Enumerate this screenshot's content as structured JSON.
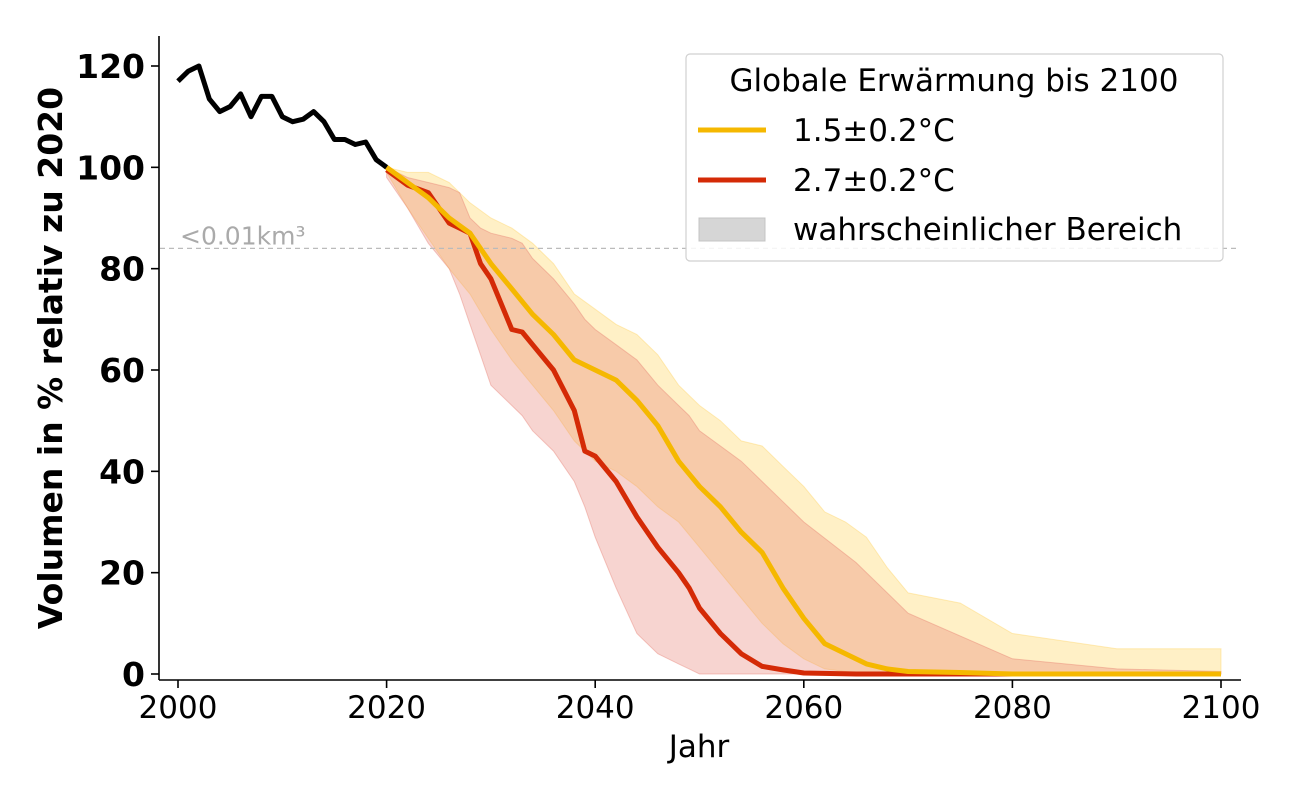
{
  "chart_data": {
    "type": "line",
    "xlabel": "Jahr",
    "ylabel": "Volumen in % relativ zu 2020",
    "xlim": [
      2000,
      2100
    ],
    "ylim": [
      0,
      125
    ],
    "x_ticks": [
      2000,
      2020,
      2040,
      2060,
      2080,
      2100
    ],
    "y_ticks": [
      0,
      20,
      40,
      60,
      80,
      100,
      120
    ],
    "grid": false,
    "legend": {
      "placement": "top-right",
      "title": "Globale Erwärmung bis 2100",
      "entries": [
        "1.5±0.2°C",
        "2.7±0.2°C",
        "wahrscheinlicher Bereich"
      ]
    },
    "reference_line": {
      "y": 84,
      "label": "<0.01km³",
      "color": "#bbbbbb"
    },
    "historical": {
      "color": "#000000",
      "x": [
        2000,
        2001,
        2002,
        2003,
        2004,
        2005,
        2006,
        2007,
        2008,
        2009,
        2010,
        2011,
        2012,
        2013,
        2014,
        2015,
        2016,
        2017,
        2018,
        2019,
        2020
      ],
      "y": [
        117,
        119,
        120,
        113.5,
        111,
        112,
        114.5,
        110,
        114,
        114,
        110,
        109,
        109.5,
        111,
        109,
        105.5,
        105.5,
        104.5,
        105,
        101.5,
        100
      ]
    },
    "series": [
      {
        "name": "1.5±0.2°C",
        "color": "#f5b800",
        "band_color": "#ffe9a8",
        "x": [
          2020,
          2022,
          2024,
          2026,
          2028,
          2030,
          2032,
          2034,
          2036,
          2038,
          2040,
          2042,
          2044,
          2046,
          2048,
          2050,
          2052,
          2054,
          2056,
          2058,
          2060,
          2062,
          2064,
          2066,
          2068,
          2070,
          2075,
          2080,
          2090,
          2100
        ],
        "y": [
          100,
          97,
          94,
          90,
          87,
          81,
          76,
          71,
          67,
          62,
          60,
          58,
          54,
          49,
          42,
          37,
          33,
          28,
          24,
          17,
          11,
          6,
          4,
          2,
          1,
          0.5,
          0.3,
          0,
          0,
          0
        ],
        "lower": [
          99,
          92,
          86,
          80,
          75,
          68,
          62,
          57,
          52,
          46,
          42,
          40,
          37,
          33,
          30,
          25,
          20,
          15,
          10,
          6,
          3,
          1,
          0.5,
          0,
          0,
          0,
          0,
          0,
          0,
          0
        ],
        "upper": [
          100,
          99,
          99,
          97,
          93,
          90,
          88,
          85,
          81,
          75,
          72,
          69,
          67,
          63,
          57,
          53,
          50,
          46,
          45,
          41,
          37,
          32,
          30,
          27,
          21,
          16,
          14,
          8,
          5,
          5
        ]
      },
      {
        "name": "2.7±0.2°C",
        "color": "#d42a06",
        "band_color": "#f3c8c6",
        "x": [
          2020,
          2022,
          2024,
          2026,
          2027,
          2028,
          2029,
          2030,
          2032,
          2033,
          2034,
          2036,
          2038,
          2039,
          2040,
          2042,
          2044,
          2046,
          2048,
          2049,
          2050,
          2052,
          2054,
          2056,
          2058,
          2060,
          2065,
          2070,
          2080,
          2090,
          2100
        ],
        "y": [
          99.5,
          96.5,
          95,
          89,
          88,
          87,
          81,
          78,
          68,
          67.5,
          65,
          60,
          52,
          44,
          43,
          38,
          31,
          25,
          20,
          17,
          13,
          8,
          4,
          1.5,
          0.8,
          0.2,
          0,
          0,
          0,
          0,
          0
        ],
        "lower": [
          98,
          92,
          85,
          80,
          75,
          69,
          63,
          57,
          53,
          51,
          48,
          44,
          38,
          33,
          27,
          17,
          8,
          4,
          2,
          1,
          0,
          0,
          0,
          0,
          0,
          0,
          0,
          0,
          0,
          0,
          0
        ],
        "upper": [
          100,
          98,
          97,
          96,
          95,
          90,
          88,
          87,
          86,
          85,
          82,
          78,
          73,
          70,
          68,
          65,
          62,
          57,
          53,
          51,
          48,
          45,
          42,
          38,
          34,
          30,
          22,
          12,
          3,
          1,
          0.5
        ]
      }
    ]
  }
}
